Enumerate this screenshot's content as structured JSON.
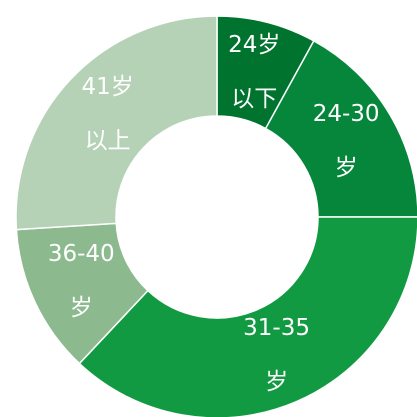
{
  "chart_data": {
    "type": "donut",
    "categories": [
      "24岁以下",
      "24-30岁",
      "31-35岁",
      "36-40岁",
      "41岁以上"
    ],
    "values": [
      8,
      17,
      37,
      12,
      26
    ],
    "colors": [
      "#00732f",
      "#05863a",
      "#129a42",
      "#8cba8e",
      "#b5d2b7"
    ]
  }
}
